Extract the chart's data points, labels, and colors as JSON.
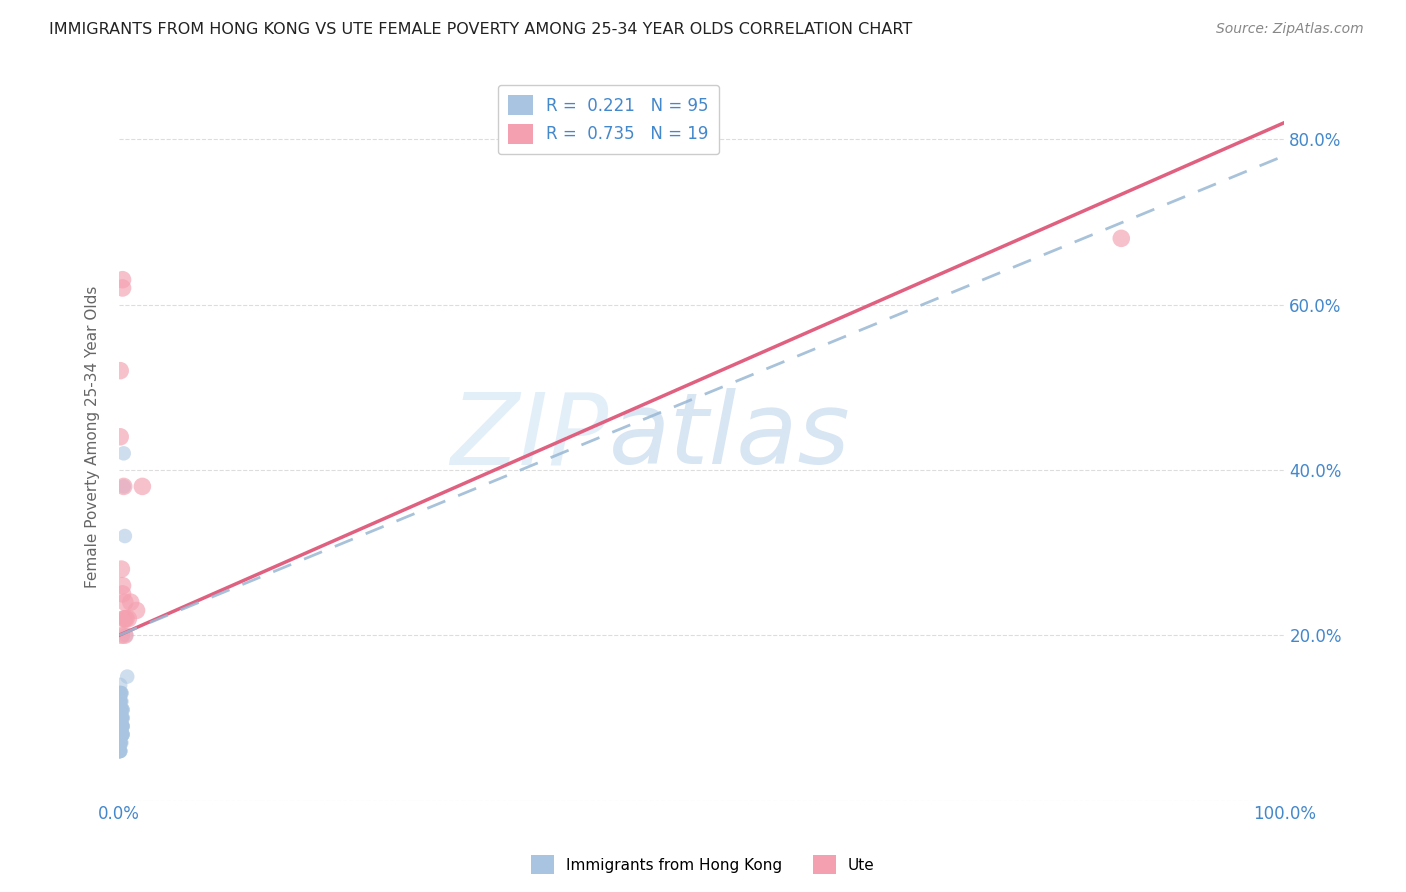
{
  "title": "IMMIGRANTS FROM HONG KONG VS UTE FEMALE POVERTY AMONG 25-34 YEAR OLDS CORRELATION CHART",
  "source": "Source: ZipAtlas.com",
  "ylabel": "Female Poverty Among 25-34 Year Olds",
  "xlim": [
    0,
    1.0
  ],
  "ylim": [
    0,
    0.88
  ],
  "hk_R": 0.221,
  "hk_N": 95,
  "ute_R": 0.735,
  "ute_N": 19,
  "hk_color": "#a8c4e0",
  "ute_color": "#f4a0b0",
  "hk_line_color": "#99b8d4",
  "ute_line_color": "#e06080",
  "legend_label_hk": "Immigrants from Hong Kong",
  "legend_label_ute": "Ute",
  "watermark_zip": "ZIP",
  "watermark_atlas": "atlas",
  "background_color": "#ffffff",
  "grid_color": "#dddddd",
  "hk_scatter_x": [
    0.001,
    0.0,
    0.002,
    0.001,
    0.0,
    0.001,
    0.002,
    0.0,
    0.001,
    0.003,
    0.0,
    0.001,
    0.002,
    0.0,
    0.001,
    0.003,
    0.0,
    0.001,
    0.002,
    0.001,
    0.0,
    0.002,
    0.001,
    0.0,
    0.003,
    0.001,
    0.002,
    0.0,
    0.001,
    0.0,
    0.002,
    0.001,
    0.0,
    0.001,
    0.002,
    0.003,
    0.0,
    0.001,
    0.002,
    0.0,
    0.001,
    0.0,
    0.002,
    0.001,
    0.003,
    0.0,
    0.001,
    0.002,
    0.0,
    0.001,
    0.002,
    0.001,
    0.0,
    0.003,
    0.001,
    0.0,
    0.002,
    0.001,
    0.0,
    0.001,
    0.002,
    0.0,
    0.001,
    0.003,
    0.0,
    0.001,
    0.002,
    0.001,
    0.0,
    0.002,
    0.001,
    0.0,
    0.003,
    0.001,
    0.002,
    0.0,
    0.001,
    0.002,
    0.0,
    0.001,
    0.002,
    0.003,
    0.001,
    0.0,
    0.002,
    0.001,
    0.0,
    0.002,
    0.001,
    0.003,
    0.004,
    0.005,
    0.007,
    0.004,
    0.006
  ],
  "hk_scatter_y": [
    0.13,
    0.1,
    0.08,
    0.12,
    0.07,
    0.09,
    0.11,
    0.06,
    0.14,
    0.1,
    0.08,
    0.11,
    0.09,
    0.07,
    0.13,
    0.08,
    0.1,
    0.06,
    0.09,
    0.12,
    0.07,
    0.1,
    0.08,
    0.11,
    0.09,
    0.06,
    0.13,
    0.07,
    0.1,
    0.08,
    0.11,
    0.09,
    0.12,
    0.07,
    0.1,
    0.08,
    0.06,
    0.11,
    0.09,
    0.13,
    0.07,
    0.1,
    0.08,
    0.12,
    0.09,
    0.06,
    0.11,
    0.1,
    0.08,
    0.13,
    0.07,
    0.09,
    0.11,
    0.08,
    0.1,
    0.06,
    0.12,
    0.09,
    0.07,
    0.11,
    0.1,
    0.08,
    0.13,
    0.09,
    0.06,
    0.11,
    0.08,
    0.1,
    0.07,
    0.09,
    0.12,
    0.08,
    0.1,
    0.06,
    0.11,
    0.09,
    0.07,
    0.13,
    0.08,
    0.1,
    0.09,
    0.11,
    0.07,
    0.06,
    0.1,
    0.08,
    0.12,
    0.09,
    0.07,
    0.11,
    0.38,
    0.32,
    0.15,
    0.42,
    0.2
  ],
  "ute_scatter_x": [
    0.001,
    0.001,
    0.002,
    0.003,
    0.003,
    0.003,
    0.004,
    0.004,
    0.005,
    0.005,
    0.006,
    0.008,
    0.01,
    0.015,
    0.02,
    0.003,
    0.002,
    0.86,
    0.005
  ],
  "ute_scatter_y": [
    0.52,
    0.44,
    0.28,
    0.63,
    0.62,
    0.26,
    0.38,
    0.22,
    0.24,
    0.2,
    0.22,
    0.22,
    0.24,
    0.23,
    0.38,
    0.25,
    0.2,
    0.68,
    0.22
  ],
  "ute_line_x0": 0.0,
  "ute_line_y0": 0.2,
  "ute_line_x1": 1.0,
  "ute_line_y1": 0.82,
  "hk_line_x0": 0.0,
  "hk_line_y0": 0.2,
  "hk_line_x1": 1.0,
  "hk_line_y1": 0.78
}
